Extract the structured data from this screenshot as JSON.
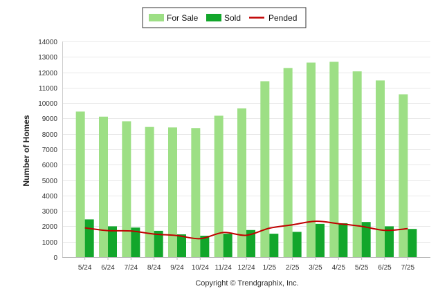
{
  "chart_data": {
    "type": "bar",
    "categories": [
      "5/24",
      "6/24",
      "7/24",
      "8/24",
      "9/24",
      "10/24",
      "11/24",
      "12/24",
      "1/25",
      "2/25",
      "3/25",
      "4/25",
      "5/25",
      "6/25",
      "7/25"
    ],
    "series": [
      {
        "name": "For Sale",
        "type": "bar",
        "color": "#9ddf85",
        "values": [
          9450,
          9120,
          8820,
          8450,
          8420,
          8380,
          9180,
          9660,
          11420,
          12280,
          12630,
          12680,
          12060,
          11470,
          10570
        ]
      },
      {
        "name": "Sold",
        "type": "bar",
        "color": "#12a62b",
        "values": [
          2450,
          2000,
          1920,
          1710,
          1480,
          1390,
          1520,
          1760,
          1520,
          1640,
          2160,
          2200,
          2280,
          2000,
          1830
        ]
      },
      {
        "name": "Pended",
        "type": "line",
        "color": "#c00000",
        "values": [
          1900,
          1720,
          1700,
          1500,
          1400,
          1200,
          1600,
          1420,
          1880,
          2100,
          2330,
          2170,
          2000,
          1740,
          1850
        ]
      }
    ],
    "ylabel": "Number of Homes",
    "xlabel": "",
    "ylim": [
      0,
      14000
    ],
    "yticks": [
      0,
      1000,
      2000,
      3000,
      4000,
      5000,
      6000,
      7000,
      8000,
      9000,
      10000,
      11000,
      12000,
      13000,
      14000
    ],
    "grid": true,
    "legend_position": "top-center",
    "footer": "Copyright © Trendgraphix, Inc."
  }
}
